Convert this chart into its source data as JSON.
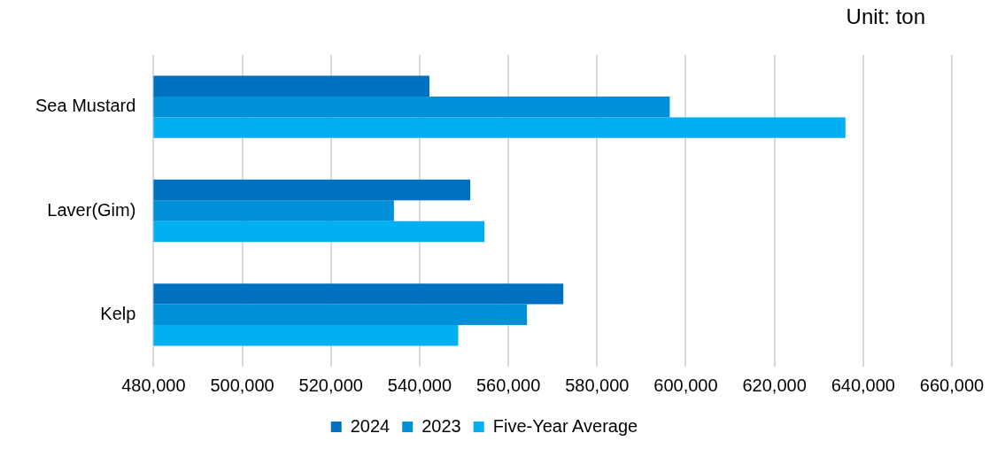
{
  "chart_data": {
    "type": "bar",
    "orientation": "horizontal",
    "categories": [
      "Sea Mustard",
      "Laver(Gim)",
      "Kelp"
    ],
    "series": [
      {
        "name": "2024",
        "color": "#0070c0",
        "values": [
          542200,
          551400,
          572400
        ]
      },
      {
        "name": "2023",
        "color": "#0090d8",
        "values": [
          596400,
          534200,
          564200
        ]
      },
      {
        "name": "Five-Year Average",
        "color": "#00b0f0",
        "values": [
          636000,
          554600,
          548700
        ]
      }
    ],
    "xlim": [
      480000,
      660000
    ],
    "xticks": [
      {
        "value": 480000,
        "label": "480,000"
      },
      {
        "value": 500000,
        "label": "500,000"
      },
      {
        "value": 520000,
        "label": "520,000"
      },
      {
        "value": 540000,
        "label": "540,000"
      },
      {
        "value": 560000,
        "label": "560,000"
      },
      {
        "value": 580000,
        "label": "580,000"
      },
      {
        "value": 600000,
        "label": "600,000"
      },
      {
        "value": 620000,
        "label": "620,000"
      },
      {
        "value": 640000,
        "label": "640,000"
      },
      {
        "value": 660000,
        "label": "660,000"
      }
    ],
    "grid": "x",
    "legend": "bottom",
    "annotations": [
      "Unit: ton"
    ]
  }
}
